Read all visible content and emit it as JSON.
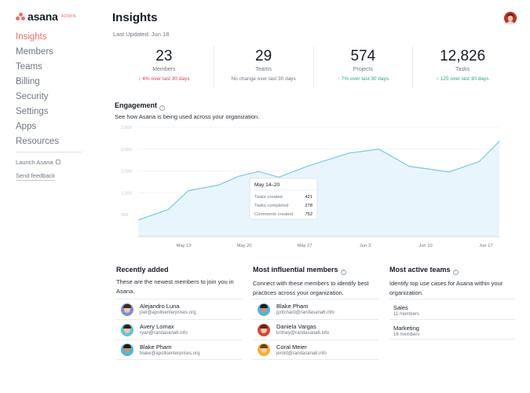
{
  "app": {
    "logo_text": "asana",
    "logo_badge": "ADMIN"
  },
  "sidebar": {
    "items": [
      {
        "label": "Insights"
      },
      {
        "label": "Members"
      },
      {
        "label": "Teams"
      },
      {
        "label": "Billing"
      },
      {
        "label": "Security"
      },
      {
        "label": "Settings"
      },
      {
        "label": "Apps"
      },
      {
        "label": "Resources"
      }
    ],
    "launch_label": "Launch Asana",
    "feedback_label": "Send feedback"
  },
  "header": {
    "title": "Insights",
    "last_updated": "Last Updated: Jun 18"
  },
  "stats": [
    {
      "value": "23",
      "label": "Members",
      "change": "↓ 4% over last 30 days",
      "trend": "down"
    },
    {
      "value": "29",
      "label": "Teams",
      "change": "No change over last 30 days",
      "trend": "flat"
    },
    {
      "value": "574",
      "label": "Projects",
      "change": "↑ 7% over last 30 days",
      "trend": "up"
    },
    {
      "value": "12,826",
      "label": "Tasks",
      "change": "↑ 125 over last 30 days",
      "trend": "up"
    }
  ],
  "engagement": {
    "title": "Engagement",
    "subtitle": "See how Asana is being used across your organization.",
    "tooltip": {
      "title": "May 14–20",
      "rows": [
        {
          "label": "Tasks created",
          "value": "421"
        },
        {
          "label": "Tasks completed",
          "value": "278"
        },
        {
          "label": "Comments created",
          "value": "752"
        }
      ]
    }
  },
  "chart_data": {
    "type": "area",
    "x_ticks": [
      "May 13",
      "May 20",
      "May 27",
      "Jun 3",
      "Jun 10",
      "Jun 17"
    ],
    "y_ticks": [
      "500",
      "1,000",
      "1,500",
      "2,000",
      "2,500"
    ],
    "ylim": [
      0,
      2500
    ],
    "x_range": [
      0,
      36
    ],
    "series": [
      {
        "x": [
          0,
          3,
          5,
          8,
          10,
          12,
          14,
          17,
          21,
          24,
          27,
          31,
          34,
          36
        ],
        "values": [
          380,
          620,
          1050,
          1180,
          1380,
          1490,
          1360,
          1620,
          1910,
          2000,
          1610,
          1480,
          1720,
          2180
        ]
      }
    ],
    "grid": true,
    "colors": {
      "line": "#7cc6e8",
      "fill": "#e8f5fc"
    }
  },
  "recently_added": {
    "title": "Recently added",
    "description": "These are the newest members to join you in Asana.",
    "members": [
      {
        "name": "Alejandro Luna",
        "email": "joel@apolloenterprises.org"
      },
      {
        "name": "Avery Lomax",
        "email": "ryan@randasana6.info"
      },
      {
        "name": "Blake Pham",
        "email": "blake@apolloenterprises.org"
      }
    ]
  },
  "influential": {
    "title": "Most influential members",
    "description": "Connect with these members to identify best practices across your organization.",
    "members": [
      {
        "name": "Blake Pham",
        "email": "jpritchard@randasana6.info"
      },
      {
        "name": "Daniela Vargas",
        "email": "britney@randasana6.info"
      },
      {
        "name": "Coral Meier",
        "email": "jerold@randasana6.info"
      }
    ]
  },
  "active_teams": {
    "title": "Most active teams",
    "description": "Identify top use cases for Asana within your organization.",
    "teams": [
      {
        "name": "Sales",
        "members": "11 members"
      },
      {
        "name": "Marketing",
        "members": "16 members"
      }
    ]
  }
}
